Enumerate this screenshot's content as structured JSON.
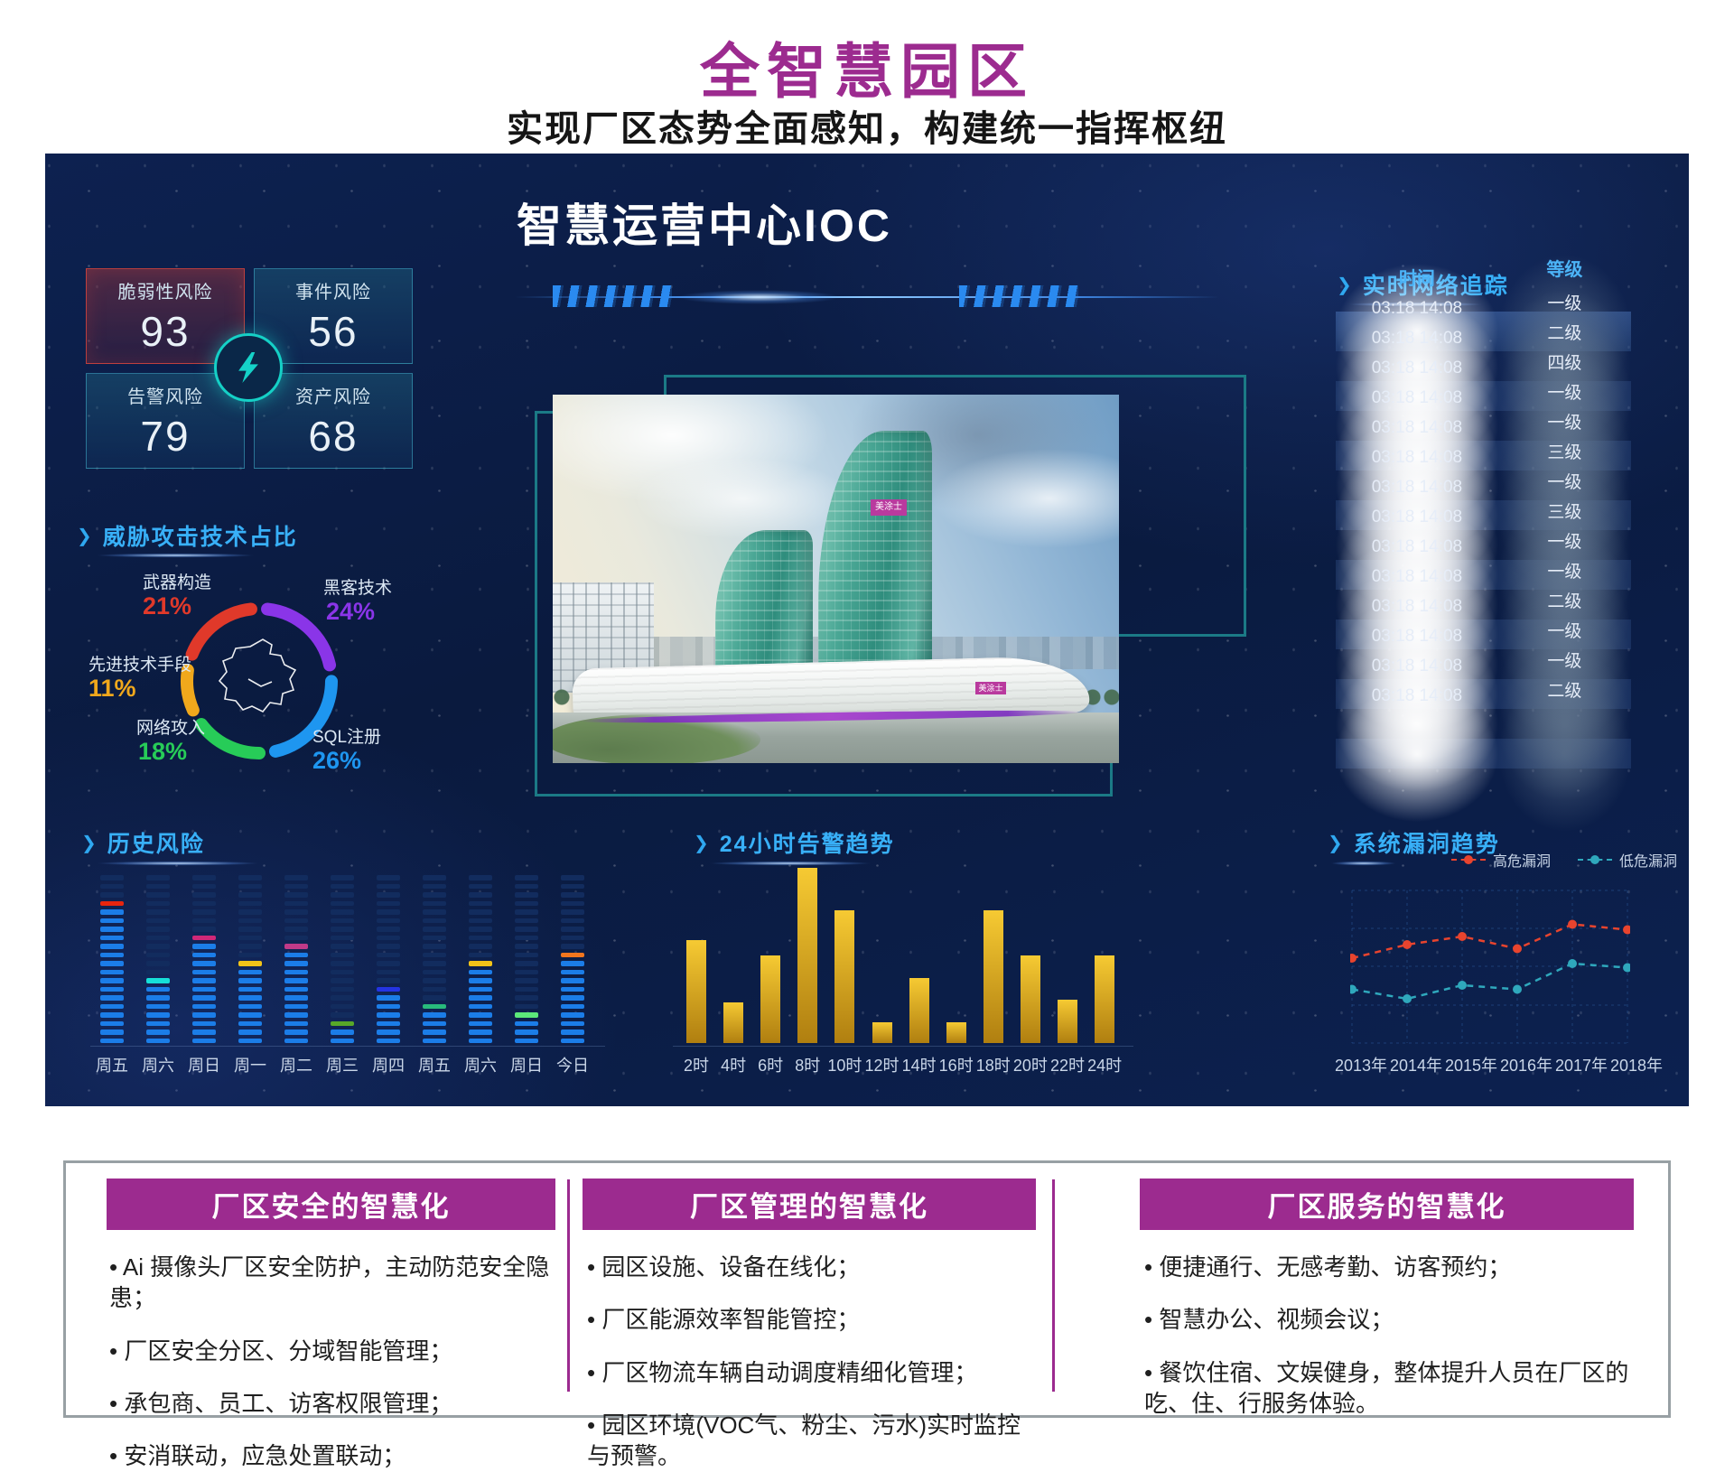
{
  "page": {
    "title": "全智慧园区",
    "subtitle": "实现厂区态势全面感知，构建统一指挥枢纽"
  },
  "dashboard": {
    "title": "智慧运营中心IOC",
    "risk_cards": [
      {
        "label": "脆弱性风险",
        "value": "93"
      },
      {
        "label": "事件风险",
        "value": "56"
      },
      {
        "label": "告警风险",
        "value": "79"
      },
      {
        "label": "资产风险",
        "value": "68"
      }
    ],
    "building_logo": "美涂士",
    "network": {
      "title": "实时网络追踪",
      "columns": [
        "时间",
        "等级"
      ],
      "rows": [
        {
          "time": "03:18 14:08",
          "level": "一级"
        },
        {
          "time": "03:18 14:08",
          "level": "二级"
        },
        {
          "time": "03:18 14:08",
          "level": "四级"
        },
        {
          "time": "03:18 14:08",
          "level": "一级"
        },
        {
          "time": "03:18 14:08",
          "level": "一级"
        },
        {
          "time": "03:18 14:08",
          "level": "三级"
        },
        {
          "time": "03:18 14:08",
          "level": "一级"
        },
        {
          "time": "03:18 14:08",
          "level": "三级"
        },
        {
          "time": "03:18 14:08",
          "level": "一级"
        },
        {
          "time": "03:18 14:08",
          "level": "一级"
        },
        {
          "time": "03:18 14:08",
          "level": "二级"
        },
        {
          "time": "03:18 14:08",
          "level": "一级"
        },
        {
          "time": "03:18 14:08",
          "level": "一级"
        },
        {
          "time": "03:18 14:08",
          "level": "二级"
        }
      ]
    }
  },
  "chart_data": [
    {
      "type": "pie",
      "subtype": "donut",
      "title": "威胁攻击技术占比",
      "items": [
        {
          "label": "武器构造",
          "pct": 21,
          "pct_label": "21%",
          "color": "#e0392a"
        },
        {
          "label": "黑客技术",
          "pct": 24,
          "pct_label": "24%",
          "color": "#8a35e8"
        },
        {
          "label": "先进技术手段",
          "pct": 11,
          "pct_label": "11%",
          "color": "#f0a81c"
        },
        {
          "label": "网络攻入",
          "pct": 18,
          "pct_label": "18%",
          "color": "#27cc58"
        },
        {
          "label": "SQL注册",
          "pct": 26,
          "pct_label": "26%",
          "color": "#1e96f0"
        }
      ],
      "draw_order": [
        1,
        4,
        3,
        2,
        0
      ],
      "legend_position": "around"
    },
    {
      "type": "bar",
      "subtype": "segmented",
      "title": "历史风险",
      "categories": [
        "周五",
        "周六",
        "周日",
        "周一",
        "周二",
        "周三",
        "周四",
        "周五",
        "周六",
        "周日",
        "今日"
      ],
      "values": [
        17,
        8,
        13,
        10,
        12,
        3,
        7,
        5,
        10,
        4,
        11
      ],
      "cap_colors": [
        "#e8250e",
        "#16e0d8",
        "#d02878",
        "#f2c318",
        "#c03a88",
        "#58a828",
        "#2434e2",
        "#28ba7c",
        "#f2c318",
        "#5ce87a",
        "#f2761e"
      ],
      "segment_color": "#1b7de8",
      "track_color": "#122c5e",
      "track_segments": 20,
      "ylim": [
        0,
        20
      ],
      "grid": false
    },
    {
      "type": "bar",
      "title": "24小时告警趋势",
      "categories": [
        "2时",
        "4时",
        "6时",
        "8时",
        "10时",
        "12时",
        "14时",
        "16时",
        "18时",
        "20时",
        "22时",
        "24时"
      ],
      "values": [
        59,
        23,
        50,
        100,
        76,
        12,
        37,
        12,
        76,
        50,
        25,
        50
      ],
      "bar_color_top": "#f6ca33",
      "bar_color_bottom": "#b07f10",
      "ylim": [
        0,
        100
      ],
      "grid": false
    },
    {
      "type": "line",
      "title": "系统漏洞趋势",
      "x": [
        "2013年",
        "2014年",
        "2015年",
        "2016年",
        "2017年",
        "2018年"
      ],
      "series": [
        {
          "name": "高危漏洞",
          "color": "#e8442e",
          "values": [
            54,
            64,
            70,
            61,
            79,
            75
          ]
        },
        {
          "name": "低危漏洞",
          "color": "#2fa8bc",
          "values": [
            31,
            24,
            34,
            31,
            50,
            47
          ]
        }
      ],
      "ylim": [
        0,
        100
      ],
      "grid": "dashed",
      "line_style": "dashed",
      "legend_position": "top-right"
    }
  ],
  "info_panel": {
    "columns": [
      {
        "header": "厂区安全的智慧化",
        "bullets": [
          "Ai 摄像头厂区安全防护，主动防范安全隐患；",
          "厂区安全分区、分域智能管理；",
          "承包商、员工、访客权限管理；",
          "安消联动，应急处置联动；"
        ]
      },
      {
        "header": "厂区管理的智慧化",
        "bullets": [
          "园区设施、设备在线化；",
          "厂区能源效率智能管控；",
          "厂区物流车辆自动调度精细化管理；",
          "园区环境(VOC气、粉尘、污水)实时监控与预警。"
        ]
      },
      {
        "header": "厂区服务的智慧化",
        "bullets": [
          "便捷通行、无感考勤、访客预约；",
          "智慧办公、视频会议；",
          "餐饮住宿、文娱健身，整体提升人员在厂区的吃、住、行服务体验。"
        ]
      }
    ]
  },
  "colors": {
    "brand_magenta": "#9c2b8f",
    "section_blue": "#38b0f8",
    "panel_bg": "#0a1a3e",
    "teal_frame": "#1b7a86",
    "gold_bar": "#e8b020"
  }
}
